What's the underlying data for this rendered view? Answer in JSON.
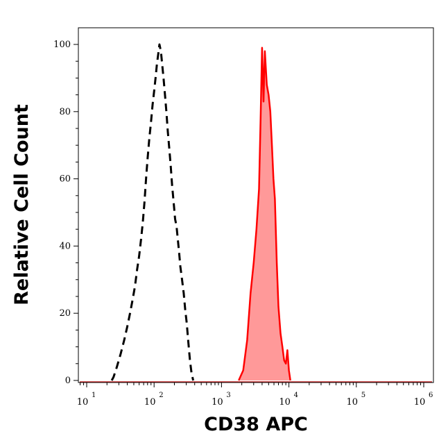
{
  "chart_data": {
    "type": "area",
    "title": "",
    "xlabel": "CD38 APC",
    "ylabel": "Relative Cell Count",
    "x_scale": "log",
    "xlim": [
      10,
      1000000
    ],
    "ylim": [
      0,
      100
    ],
    "x_ticks": [
      {
        "base": "10",
        "exp": "1"
      },
      {
        "base": "10",
        "exp": "2"
      },
      {
        "base": "10",
        "exp": "3"
      },
      {
        "base": "10",
        "exp": "4"
      },
      {
        "base": "10",
        "exp": "5"
      },
      {
        "base": "10",
        "exp": "6"
      }
    ],
    "y_ticks": [
      "0",
      "20",
      "40",
      "60",
      "80",
      "100"
    ],
    "grid": false,
    "legend": "none",
    "series": [
      {
        "style": "dashed",
        "color": "#000000",
        "fill": "none",
        "x": [
          23.5,
          25,
          28,
          32,
          36,
          40,
          44,
          48,
          52,
          56,
          60,
          64,
          68,
          72,
          76,
          80,
          85,
          90,
          95,
          100,
          105,
          110,
          115,
          120,
          126,
          132,
          138,
          145,
          152,
          160,
          168,
          176,
          185,
          195,
          205,
          215,
          225,
          235,
          245,
          260,
          275,
          290,
          305,
          320,
          340,
          360,
          380
        ],
        "y": [
          0,
          1,
          4,
          8,
          12,
          16,
          20,
          24,
          28,
          33,
          37,
          42,
          47,
          53,
          60,
          66,
          72,
          77,
          82,
          86,
          90,
          94,
          97,
          100,
          98,
          94,
          90,
          85,
          80,
          74,
          69,
          64,
          58,
          53,
          48,
          46,
          42,
          38,
          34,
          30,
          26,
          21,
          17,
          12,
          6,
          2,
          0
        ]
      },
      {
        "style": "solid",
        "color": "#ff0000",
        "fill": "#ff9999",
        "x": [
          1800,
          2100,
          2400,
          2700,
          3000,
          3300,
          3600,
          3800,
          4000,
          4200,
          4400,
          4700,
          5000,
          5300,
          5600,
          5900,
          6200,
          6600,
          7000,
          7500,
          8000,
          8500,
          9000,
          9500,
          10000,
          10500
        ],
        "y": [
          0,
          3,
          12,
          26,
          35,
          45,
          57,
          78,
          99,
          83,
          98,
          88,
          85,
          80,
          70,
          60,
          54,
          35,
          22,
          14,
          10,
          6,
          5,
          9,
          3,
          0
        ]
      }
    ]
  }
}
